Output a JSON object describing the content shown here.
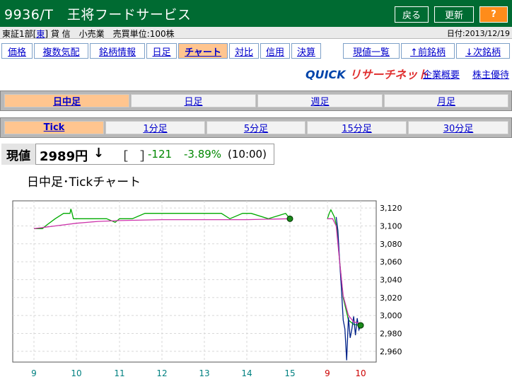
{
  "header": {
    "title": "9936/T　王将フードサービス",
    "buttons": {
      "back": "戻る",
      "refresh": "更新",
      "help": "?"
    }
  },
  "market": {
    "prefix": "東証1部[",
    "exchange": "東",
    "suffix": "] 貸 信　小売業　売買単位:100株",
    "date": "日付:2013/12/19"
  },
  "menu_tabs": [
    "価格",
    "複数気配",
    "銘柄情報",
    "日足",
    "チャート",
    "対比",
    "信用",
    "決算"
  ],
  "active_menu": "チャート",
  "nav_buttons": [
    "現値一覧",
    "↑前銘柄",
    "↓次銘柄"
  ],
  "quick": {
    "logo_a": "QUICK",
    "logo_b": " リサーチネット",
    "links": [
      "企業概要",
      "株主優待"
    ]
  },
  "period_tabs": [
    "日中足",
    "日足",
    "週足",
    "月足"
  ],
  "active_period": "日中足",
  "interval_tabs": [
    "Tick",
    "1分足",
    "5分足",
    "15分足",
    "30分足"
  ],
  "active_interval": "Tick",
  "price": {
    "label": "現値",
    "value": "2989円",
    "arrow": "↓",
    "bracket": "［　］",
    "change": "-121",
    "pct": "-3.89%",
    "time": "(10:00)"
  },
  "chart_title": "日中足･Tickチャート",
  "chart_data": {
    "type": "line",
    "y_ticks": [
      3120,
      3100,
      3080,
      3060,
      3040,
      3020,
      3000,
      2980,
      2960
    ],
    "y_tick_labels": [
      "3,120",
      "3,100",
      "3,080",
      "3,060",
      "3,040",
      "3,020",
      "3,000",
      "2,980",
      "2,960"
    ],
    "ylim": [
      2948,
      3128
    ],
    "x_tick_labels": [
      "9",
      "10",
      "11",
      "12",
      "13",
      "14",
      "15",
      "9",
      "10"
    ],
    "x_tick_colors": [
      "#008080",
      "#008080",
      "#008080",
      "#008080",
      "#008080",
      "#008080",
      "#008080",
      "#cc0000",
      "#cc0000"
    ],
    "grid": true,
    "series": [
      {
        "color": "#00aa00",
        "x": [
          9.0,
          9.2,
          9.3,
          9.5,
          9.7,
          9.85,
          9.87,
          9.9,
          9.93,
          10.0,
          10.3,
          10.7,
          10.9,
          11.0,
          11.3,
          11.6,
          12.0,
          12.5,
          12.9,
          13.4,
          13.6,
          13.9,
          14.1,
          14.5,
          14.9,
          15.0
        ],
        "y": [
          3097,
          3097,
          3101,
          3108,
          3114,
          3114,
          3119,
          3114,
          3108,
          3108,
          3108,
          3108,
          3104,
          3108,
          3108,
          3114,
          3114,
          3114,
          3114,
          3114,
          3108,
          3114,
          3114,
          3108,
          3114,
          3108
        ]
      },
      {
        "color": "#cc33aa",
        "x": [
          9.0,
          9.5,
          10.0,
          10.5,
          11.0,
          12.0,
          13.0,
          14.0,
          15.0
        ],
        "y": [
          3097,
          3100,
          3103,
          3105,
          3106,
          3107,
          3107,
          3107,
          3108
        ]
      },
      {
        "color": "#00aa00",
        "x": [
          15.85,
          15.9,
          15.95,
          16.0,
          16.05,
          16.12,
          16.2,
          16.3,
          16.45,
          16.6,
          16.8
        ],
        "y": [
          3108,
          3114,
          3118,
          3114,
          3110,
          3098,
          3060,
          3020,
          2995,
          2990,
          2989
        ]
      },
      {
        "color": "#002288",
        "x": [
          16.1,
          16.15,
          16.2,
          16.25,
          16.3,
          16.35,
          16.4,
          16.45,
          16.5,
          16.55,
          16.6,
          16.65,
          16.7,
          16.75,
          16.8
        ],
        "y": [
          3110,
          3095,
          3060,
          3030,
          2995,
          2985,
          2950,
          2998,
          2975,
          2985,
          2999,
          2978,
          2997,
          2984,
          2989
        ]
      },
      {
        "color": "#cc33aa",
        "x": [
          15.85,
          16.0,
          16.1,
          16.2,
          16.3,
          16.45,
          16.6,
          16.8
        ],
        "y": [
          3108,
          3108,
          3100,
          3060,
          3022,
          3000,
          2993,
          2991
        ]
      }
    ],
    "markers": [
      {
        "x": 15.0,
        "y": 3108
      },
      {
        "x": 16.8,
        "y": 2989
      }
    ]
  }
}
